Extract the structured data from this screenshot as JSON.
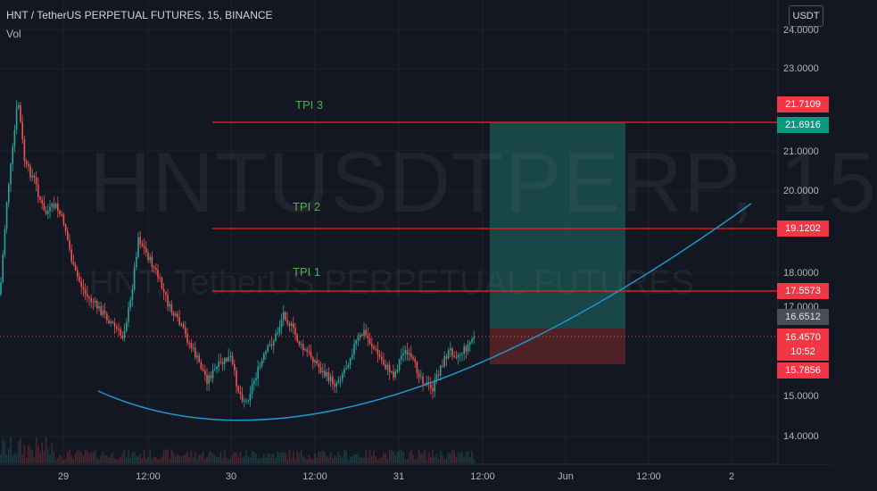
{
  "header": {
    "title": "HNT / TetherUS PERPETUAL FUTURES, 15, BINANCE",
    "volume_label": "Vol"
  },
  "watermark": {
    "symbol": "HNTUSDTPERP, 15",
    "description": "HNT, TetherUS PERPETUAL FUTURES"
  },
  "currency_button": "USDT",
  "price_axis": {
    "ticks": [
      "24.0000",
      "23.0000",
      "21.0000",
      "20.0000",
      "18.0000",
      "17.0000",
      "15.0000",
      "14.0000"
    ]
  },
  "time_axis": {
    "ticks": [
      "29",
      "12:00",
      "30",
      "12:00",
      "31",
      "12:00",
      "Jun",
      "12:00",
      "2"
    ]
  },
  "annotations": [
    {
      "label": "TPI 3",
      "price": 21.7109,
      "price_label": "21.7109"
    },
    {
      "label": "TPI 2",
      "price": 19.1202,
      "price_label": "19.1202"
    },
    {
      "label": "TPI 1",
      "price": 17.5573,
      "price_label": "17.5573"
    }
  ],
  "position": {
    "target_label": "21.6916",
    "entry_label": "16.6512",
    "stop_label": "15.7856"
  },
  "last_price": {
    "value": "16.4570",
    "countdown": "10:52"
  },
  "colors": {
    "background": "#131722",
    "up": "#26a69a",
    "down": "#ef5350",
    "tpi_line": "#ff0000",
    "tpi_text": "#4caf50",
    "curve": "#2196c8",
    "profit_zone": "#1b4f4d",
    "loss_zone": "#5a2428"
  }
}
